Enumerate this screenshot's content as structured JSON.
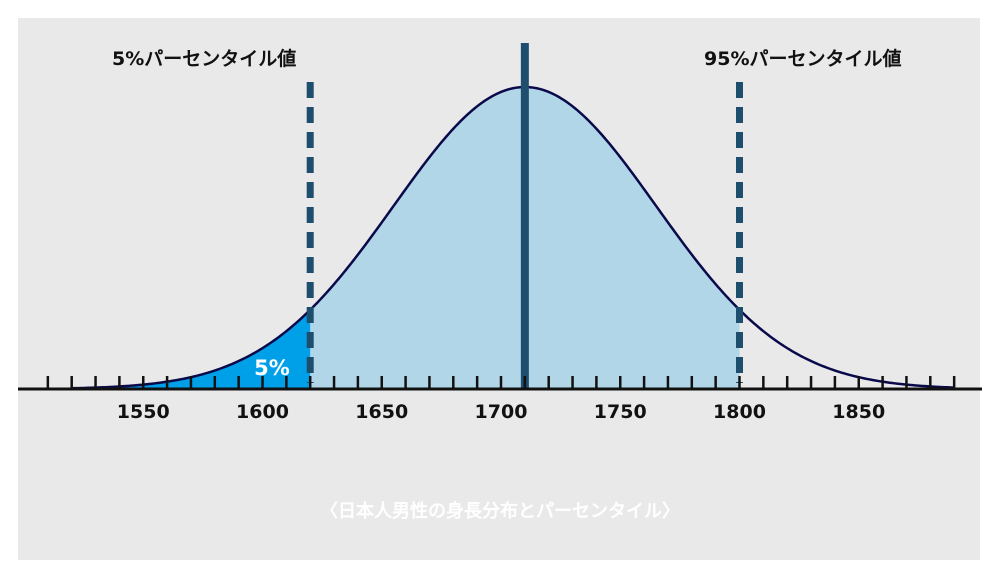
{
  "chart_data": {
    "type": "area",
    "title": "",
    "xlabel": "",
    "ylabel": "",
    "distribution": "normal",
    "mean": 1710,
    "sd": 55,
    "xlim": [
      1500,
      1890
    ],
    "tick_step": 10,
    "x_ticks": [
      1550,
      1600,
      1650,
      1700,
      1750,
      1800,
      1850
    ],
    "x_tick_labels": [
      "1550",
      "1600",
      "1650",
      "1700",
      "1750",
      "1800",
      "1850"
    ],
    "mean_line": 1710,
    "percentile_lines": [
      {
        "value": 1620,
        "label": "5%パーセンタイル値"
      },
      {
        "value": 1800,
        "label": "95%パーセンタイル値"
      }
    ],
    "shaded_regions": [
      {
        "from": 1500,
        "to": 1620,
        "label": "5%",
        "color": "#00a0e9"
      },
      {
        "from": 1620,
        "to": 1800,
        "label": "",
        "color": "#b0d6e8"
      }
    ],
    "grid": false,
    "legend": "none"
  },
  "labels": {
    "p5": "5%パーセンタイル値",
    "p95": "95%パーセンタイル値",
    "area5": "5%"
  },
  "caption": "〈日本人男性の身長分布とパーセンタイル〉",
  "colors": {
    "background": "#e9e9e9",
    "curve": "#0a0a4a",
    "left_tail_fill": "#00a0e9",
    "middle_fill": "#b0d6e8",
    "mean_line": "#1d4e6e",
    "percentile_line": "#1d4e6e",
    "axis": "#111111"
  }
}
